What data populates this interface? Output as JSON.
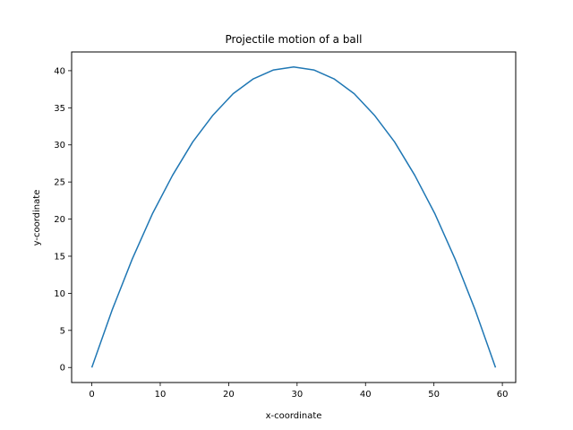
{
  "chart_data": {
    "type": "line",
    "title": "Projectile motion of a ball",
    "xlabel": "x-coordinate",
    "ylabel": "y-coordinate",
    "xlim": [
      -2.95,
      61.95
    ],
    "ylim": [
      -2.025,
      42.525
    ],
    "xticks": [
      0,
      10,
      20,
      30,
      40,
      50,
      60
    ],
    "yticks": [
      0,
      5,
      10,
      15,
      20,
      25,
      30,
      35,
      40
    ],
    "grid": false,
    "series": [
      {
        "color": "#1f77b4",
        "x": [
          0,
          2.95,
          5.9,
          8.85,
          11.8,
          14.75,
          17.7,
          20.65,
          23.6,
          26.55,
          29.5,
          32.45,
          35.4,
          38.35,
          41.3,
          44.25,
          47.2,
          50.15,
          53.1,
          56.05,
          59
        ],
        "y": [
          0,
          7.7,
          14.6,
          20.7,
          25.9,
          30.4,
          34.0,
          36.9,
          38.9,
          40.1,
          40.5,
          40.1,
          38.9,
          36.9,
          34.0,
          30.4,
          25.9,
          20.7,
          14.6,
          7.7,
          0
        ]
      }
    ]
  }
}
